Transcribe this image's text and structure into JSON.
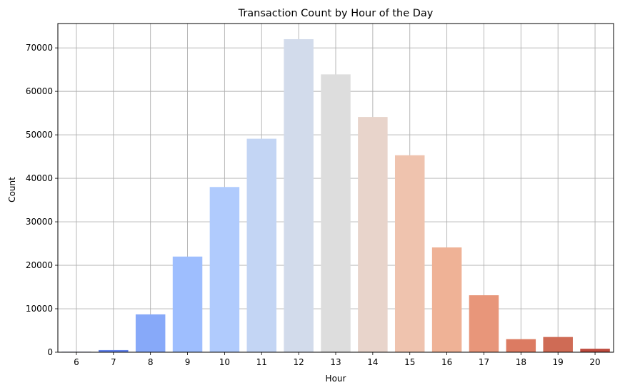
{
  "chart_data": {
    "type": "bar",
    "title": "Transaction Count by Hour of the Day",
    "xlabel": "Hour",
    "ylabel": "Count",
    "categories": [
      "6",
      "7",
      "8",
      "9",
      "10",
      "11",
      "12",
      "13",
      "14",
      "15",
      "16",
      "17",
      "18",
      "19",
      "20"
    ],
    "values": [
      100,
      500,
      8700,
      22000,
      38000,
      49100,
      72000,
      63900,
      54100,
      45300,
      24100,
      13100,
      3000,
      3500,
      800
    ],
    "colors": [
      "#3b4cc0",
      "#6282ea",
      "#87a9f9",
      "#9ebefe",
      "#b0cbfd",
      "#c3d5f4",
      "#d2dbeb",
      "#dddddd",
      "#e8d4cb",
      "#efc3ae",
      "#efb296",
      "#e8967a",
      "#dc7b62",
      "#cf6b55",
      "#be4b3e"
    ],
    "ylim": [
      0,
      75600
    ],
    "yticks": [
      0,
      10000,
      20000,
      30000,
      40000,
      50000,
      60000,
      70000
    ],
    "grid": true,
    "legend": "none"
  }
}
